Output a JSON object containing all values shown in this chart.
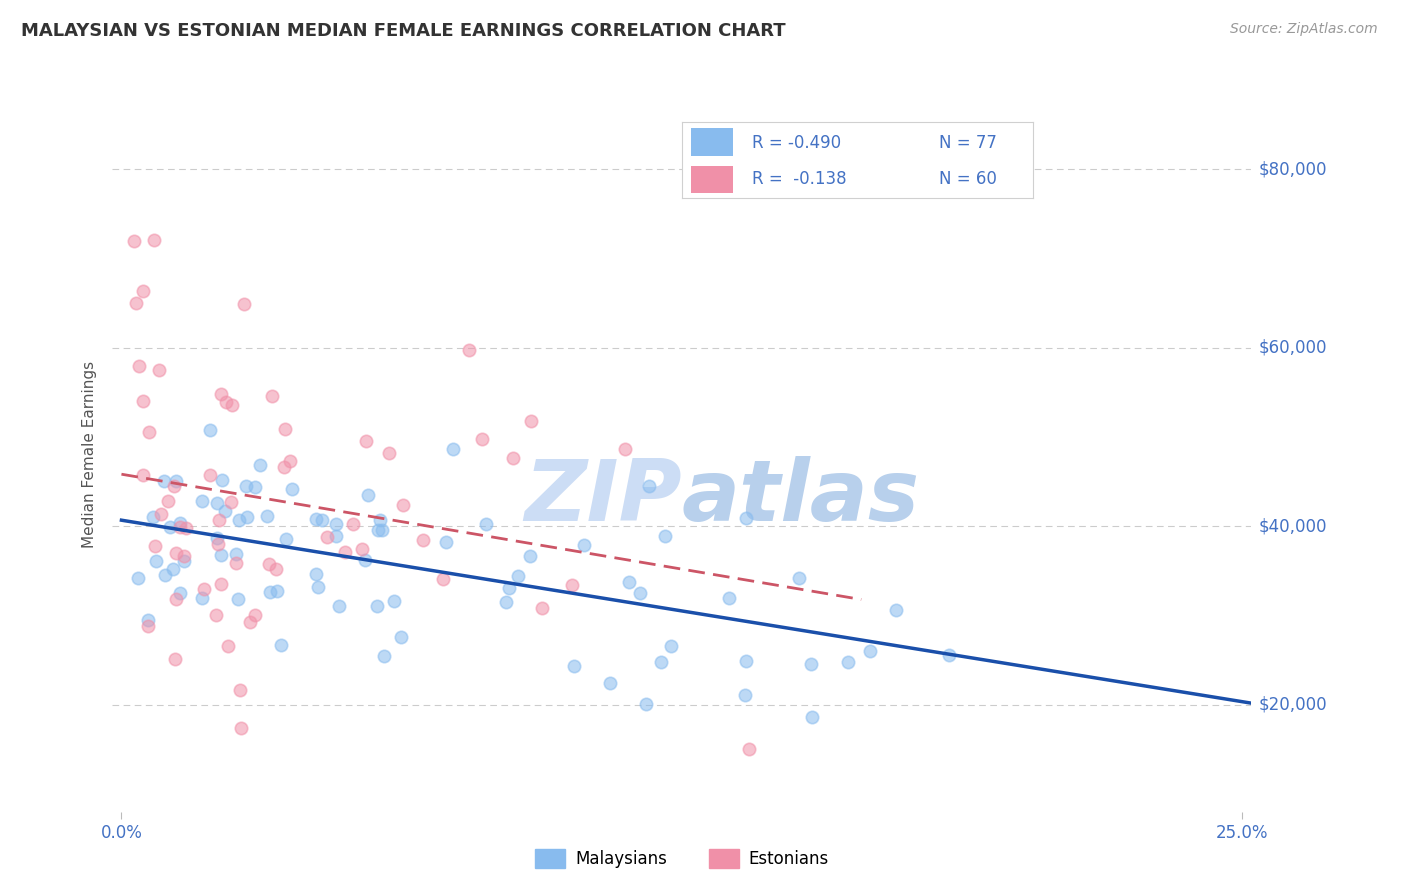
{
  "title": "MALAYSIAN VS ESTONIAN MEDIAN FEMALE EARNINGS CORRELATION CHART",
  "source_text": "Source: ZipAtlas.com",
  "ylabel": "Median Female Earnings",
  "xlim": [
    -0.002,
    0.252
  ],
  "ylim": [
    8000,
    88000
  ],
  "ytick_values": [
    20000,
    40000,
    60000,
    80000
  ],
  "ytick_labels": [
    "$20,000",
    "$40,000",
    "$60,000",
    "$80,000"
  ],
  "malaysian_color": "#88bbee",
  "estonian_color": "#f090a8",
  "trend_malaysian_color": "#1a4faa",
  "trend_estonian_color": "#cc5566",
  "background_color": "#ffffff",
  "grid_color": "#cccccc",
  "watermark_color": "#ccddf5",
  "axis_color": "#4472c4",
  "title_color": "#333333"
}
